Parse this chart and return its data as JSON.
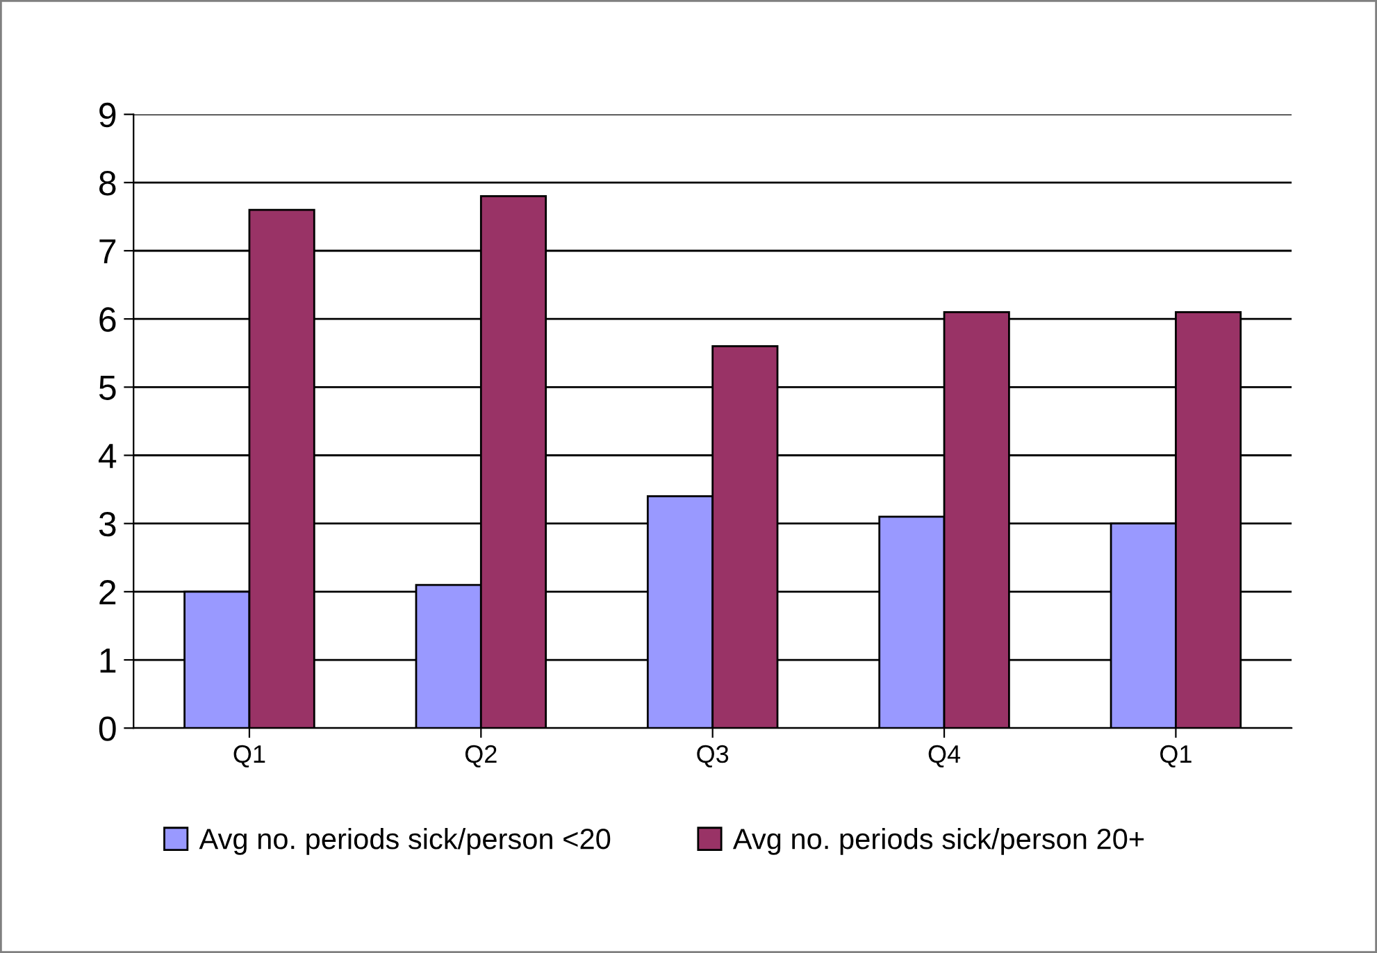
{
  "chart_data": {
    "type": "bar",
    "categories": [
      "Q1",
      "Q2",
      "Q3",
      "Q4",
      "Q1"
    ],
    "series": [
      {
        "name": "Avg no. periods sick/person <20",
        "color": "#9999ff",
        "values": [
          2.0,
          2.1,
          3.4,
          3.1,
          3.0
        ]
      },
      {
        "name": "Avg no. periods sick/person 20+",
        "color": "#993366",
        "values": [
          7.6,
          7.8,
          5.6,
          6.1,
          6.1
        ]
      }
    ],
    "ylim": [
      0,
      9
    ],
    "yticks": [
      0,
      1,
      2,
      3,
      4,
      5,
      6,
      7,
      8,
      9
    ],
    "grid": "y",
    "legend": "bottom"
  }
}
